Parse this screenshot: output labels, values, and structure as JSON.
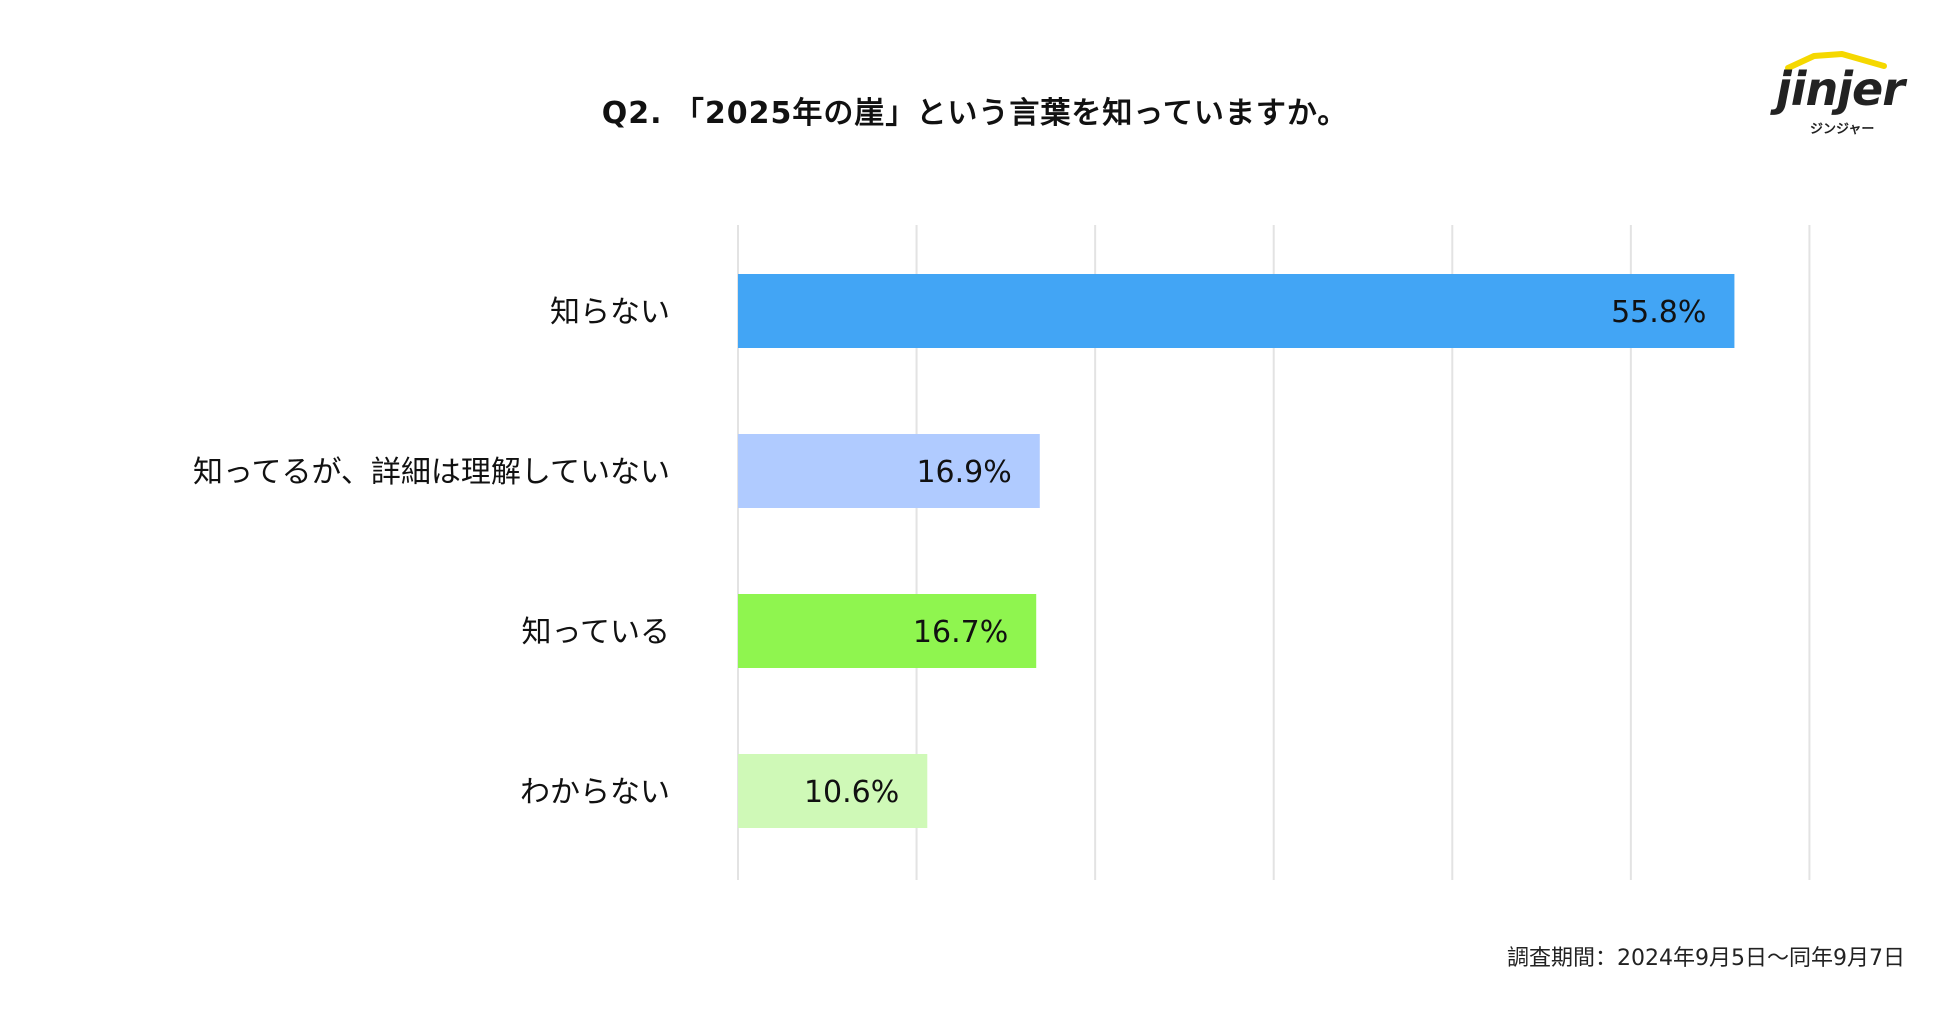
{
  "title": "Q2. 「2025年の崖」という言葉を知っていますか。",
  "logo": {
    "word": "jinjer",
    "sub": "ジンジャー",
    "roof_color": "#f5d800"
  },
  "footer": "調査期間：2024年9月5日〜同年9月7日",
  "chart_data": {
    "type": "bar",
    "orientation": "horizontal",
    "title": "Q2. 「2025年の崖」という言葉を知っていますか。",
    "categories": [
      "知らない",
      "知ってるが、詳細は理解していない",
      "知っている",
      "わからない"
    ],
    "values": [
      55.8,
      16.9,
      16.7,
      10.6
    ],
    "labels": [
      "55.8%",
      "16.9%",
      "16.7%",
      "10.6%"
    ],
    "colors": [
      "#42a5f5",
      "#b0cbff",
      "#8ff54f",
      "#cff9b7"
    ],
    "xlim": [
      0,
      60
    ],
    "grid": true,
    "legend": "none"
  }
}
